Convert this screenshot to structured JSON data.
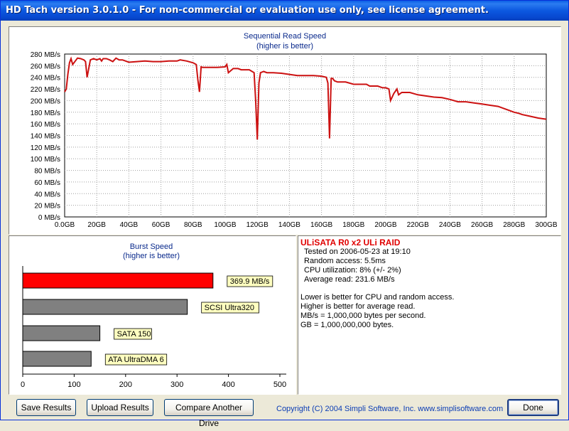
{
  "window": {
    "title": "HD Tach version 3.0.1.0  - For non-commercial or evaluation use only, see license agreement."
  },
  "seq_chart": {
    "title": "Sequential Read Speed",
    "subtitle": "(higher is better)",
    "y_labels": [
      "280 MB/s",
      "260 MB/s",
      "240 MB/s",
      "220 MB/s",
      "200 MB/s",
      "180 MB/s",
      "160 MB/s",
      "140 MB/s",
      "120 MB/s",
      "100 MB/s",
      "80 MB/s",
      "60 MB/s",
      "40 MB/s",
      "20 MB/s",
      "0 MB/s"
    ],
    "x_labels": [
      "0.0GB",
      "20GB",
      "40GB",
      "60GB",
      "80GB",
      "100GB",
      "120GB",
      "140GB",
      "160GB",
      "180GB",
      "200GB",
      "220GB",
      "240GB",
      "260GB",
      "280GB",
      "300GB"
    ],
    "line_color": "#cc1111"
  },
  "burst_chart": {
    "title": "Burst Speed",
    "subtitle": "(higher is better)",
    "x_labels": [
      "0",
      "100",
      "200",
      "300",
      "400",
      "500"
    ],
    "bars": [
      {
        "label": "369.9 MB/s",
        "value": 369.9,
        "color": "#ff0000"
      },
      {
        "label": "SCSI Ultra320",
        "value": 320,
        "color": "#808080"
      },
      {
        "label": "SATA 150",
        "value": 150,
        "color": "#808080"
      },
      {
        "label": "ATA UltraDMA 6",
        "value": 133,
        "color": "#808080"
      }
    ]
  },
  "chart_data": [
    {
      "type": "line",
      "title": "Sequential Read Speed",
      "subtitle": "(higher is better)",
      "xlabel": "",
      "ylabel": "",
      "xlim": [
        0,
        300
      ],
      "ylim": [
        0,
        280
      ],
      "x_unit": "GB",
      "y_unit": "MB/s",
      "grid": true,
      "series": [
        {
          "x": [
            0,
            1,
            2,
            3,
            4,
            5,
            8,
            10,
            12,
            13,
            14,
            16,
            18,
            20,
            22,
            23,
            24,
            26,
            28,
            30,
            32,
            34,
            36,
            40,
            45,
            50,
            55,
            60,
            65,
            70,
            72,
            76,
            80,
            82,
            83,
            84,
            85,
            86,
            88,
            90,
            95,
            100,
            101,
            102,
            105,
            108,
            110,
            115,
            118,
            119,
            120,
            121,
            122,
            124,
            126,
            130,
            135,
            140,
            145,
            150,
            155,
            160,
            163,
            164,
            165,
            166,
            167,
            168,
            170,
            175,
            180,
            185,
            188,
            190,
            195,
            198,
            200,
            202,
            203,
            205,
            207,
            208,
            210,
            215,
            220,
            225,
            230,
            235,
            240,
            245,
            250,
            255,
            260,
            265,
            270,
            275,
            280,
            283,
            285,
            290,
            295,
            300
          ],
          "y": [
            215,
            220,
            245,
            265,
            272,
            262,
            273,
            272,
            270,
            267,
            240,
            270,
            272,
            270,
            272,
            268,
            272,
            272,
            270,
            267,
            273,
            270,
            270,
            266,
            267,
            268,
            267,
            267,
            268,
            268,
            270,
            268,
            265,
            262,
            235,
            215,
            258,
            257,
            257,
            257,
            257,
            258,
            262,
            248,
            255,
            255,
            253,
            253,
            248,
            200,
            133,
            230,
            248,
            250,
            248,
            248,
            247,
            245,
            243,
            243,
            243,
            242,
            240,
            230,
            135,
            238,
            238,
            234,
            232,
            232,
            228,
            228,
            228,
            225,
            225,
            222,
            222,
            220,
            200,
            212,
            220,
            210,
            214,
            214,
            210,
            208,
            206,
            205,
            202,
            198,
            198,
            196,
            194,
            192,
            190,
            185,
            180,
            178,
            176,
            173,
            170,
            168
          ]
        }
      ]
    },
    {
      "type": "bar",
      "title": "Burst Speed",
      "subtitle": "(higher is better)",
      "orientation": "horizontal",
      "categories": [
        "369.9 MB/s",
        "SCSI Ultra320",
        "SATA 150",
        "ATA UltraDMA 6"
      ],
      "values": [
        369.9,
        320,
        150,
        133
      ],
      "xlim": [
        0,
        500
      ],
      "colors": [
        "#ff0000",
        "#808080",
        "#808080",
        "#808080"
      ]
    }
  ],
  "info": {
    "drive_name": "ULiSATA R0 x2 ULi RAID",
    "tested_on": "Tested on 2006-05-23 at 19:10",
    "random_access": "Random access: 5.5ms",
    "cpu_util": "CPU utilization: 8% (+/- 2%)",
    "avg_read": "Average read: 231.6 MB/s",
    "note1": "Lower is better for CPU and random access.",
    "note2": "Higher is better for average read.",
    "note3": "MB/s = 1,000,000 bytes per second.",
    "note4": "GB = 1,000,000,000 bytes."
  },
  "buttons": {
    "save": "Save Results",
    "upload": "Upload Results",
    "compare": "Compare Another Drive",
    "done": "Done"
  },
  "footer": {
    "copyright": "Copyright (C) 2004 Simpli Software, Inc. www.simplisoftware.com"
  }
}
